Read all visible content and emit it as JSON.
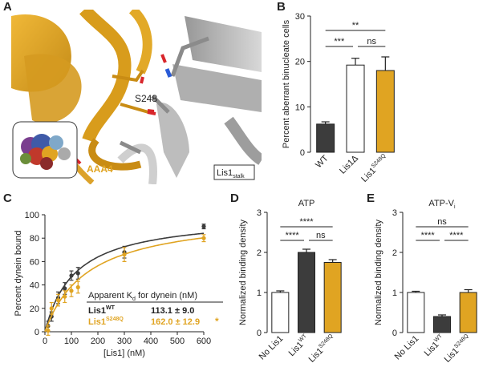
{
  "panel_letters": [
    "A",
    "B",
    "C",
    "D",
    "E"
  ],
  "structure_labels": {
    "residue": "S248",
    "domain": "AAA4",
    "lis1_stalk": "Lis1",
    "lis1_stalk_sub": "stalk"
  },
  "colors": {
    "gold": "#e0a422",
    "dark_gold": "#c98c14",
    "dark": "#3c3c3c",
    "wt_fill": "#ffffff",
    "stalk_gray": "#b9b9b9"
  },
  "chart_data": [
    {
      "panel": "B",
      "type": "bar",
      "ylabel": "Percent aberrant binucleate cells",
      "ylim": [
        0,
        30
      ],
      "yticks": [
        0,
        10,
        20,
        30
      ],
      "categories": [
        {
          "label": "WT",
          "sup": "",
          "sub": ""
        },
        {
          "label": "Lis1Δ",
          "sup": "",
          "sub": ""
        },
        {
          "label": "Lis1",
          "sup": "S248Q",
          "sub": ""
        }
      ],
      "values": [
        6.2,
        19.2,
        18.0
      ],
      "errors": [
        0.5,
        1.5,
        3.0
      ],
      "fills": [
        "#3c3c3c",
        "#ffffff",
        "#e0a422"
      ],
      "significance": [
        {
          "from": 0,
          "to": 2,
          "label": "**"
        },
        {
          "from": 0,
          "to": 1,
          "label": "***"
        },
        {
          "from": 1,
          "to": 2,
          "label": "ns"
        }
      ]
    },
    {
      "panel": "C",
      "type": "scatter",
      "xlabel": "[Lis1] (nM)",
      "ylabel": "Percent dynein bound",
      "xlim": [
        0,
        600
      ],
      "ylim": [
        0,
        100
      ],
      "xticks": [
        0,
        100,
        200,
        300,
        400,
        500,
        600
      ],
      "yticks": [
        0,
        20,
        40,
        60,
        80,
        100
      ],
      "series": [
        {
          "name": "Lis1",
          "sup": "WT",
          "color": "#3c3c3c",
          "x": [
            12,
            25,
            50,
            75,
            100,
            125,
            300,
            600
          ],
          "y": [
            5,
            13,
            29,
            37,
            48,
            50,
            68,
            90
          ],
          "err": [
            4,
            4,
            5,
            5,
            4,
            5,
            5,
            2
          ],
          "fit": {
            "bmax": 100,
            "kd": 113.1
          }
        },
        {
          "name": "Lis1",
          "sup": "S248Q",
          "color": "#e0a422",
          "x": [
            12,
            25,
            50,
            75,
            100,
            125,
            300,
            600
          ],
          "y": [
            1,
            20,
            27,
            30,
            35,
            38,
            66,
            80
          ],
          "err": [
            4,
            5,
            5,
            5,
            5,
            5,
            6,
            3
          ],
          "fit": {
            "bmax": 102,
            "kd": 162.0
          }
        }
      ],
      "table": {
        "title": "Apparent K",
        "title_sub": "d",
        "title_rest": " for dynein (nM)",
        "rows": [
          {
            "name": "Lis1",
            "sup": "WT",
            "value": "113.1 ± 9.0",
            "star": "",
            "color": "#222222"
          },
          {
            "name": "Lis1",
            "sup": "S248Q",
            "value": "162.0 ± 12.9",
            "star": "*",
            "color": "#e0a422"
          }
        ]
      }
    },
    {
      "panel": "D",
      "type": "bar",
      "title": "ATP",
      "title_sub": "",
      "ylabel": "Normalized binding density",
      "ylim": [
        0,
        3
      ],
      "yticks": [
        0,
        1,
        2,
        3
      ],
      "categories": [
        {
          "label": "No Lis1",
          "sup": "",
          "sub": ""
        },
        {
          "label": "Lis1",
          "sup": "WT",
          "sub": ""
        },
        {
          "label": "Lis1",
          "sup": "S248Q",
          "sub": ""
        }
      ],
      "values": [
        1.0,
        2.0,
        1.75
      ],
      "errors": [
        0.04,
        0.08,
        0.07
      ],
      "fills": [
        "#ffffff",
        "#3c3c3c",
        "#e0a422"
      ],
      "significance": [
        {
          "from": 0,
          "to": 2,
          "label": "****"
        },
        {
          "from": 0,
          "to": 1,
          "label": "****"
        },
        {
          "from": 1,
          "to": 2,
          "label": "ns"
        }
      ]
    },
    {
      "panel": "E",
      "type": "bar",
      "title": "ATP-V",
      "title_sub": "i",
      "ylabel": "Normalized binding density",
      "ylim": [
        0,
        3
      ],
      "yticks": [
        0,
        1,
        2,
        3
      ],
      "categories": [
        {
          "label": "No Lis1",
          "sup": "",
          "sub": ""
        },
        {
          "label": "Lis1",
          "sup": "WT",
          "sub": ""
        },
        {
          "label": "Lis1",
          "sup": "S248Q",
          "sub": ""
        }
      ],
      "values": [
        1.0,
        0.4,
        1.0
      ],
      "errors": [
        0.03,
        0.04,
        0.07
      ],
      "fills": [
        "#ffffff",
        "#3c3c3c",
        "#e0a422"
      ],
      "significance": [
        {
          "from": 0,
          "to": 2,
          "label": "ns"
        },
        {
          "from": 0,
          "to": 1,
          "label": "****"
        },
        {
          "from": 1,
          "to": 2,
          "label": "****"
        }
      ]
    }
  ]
}
